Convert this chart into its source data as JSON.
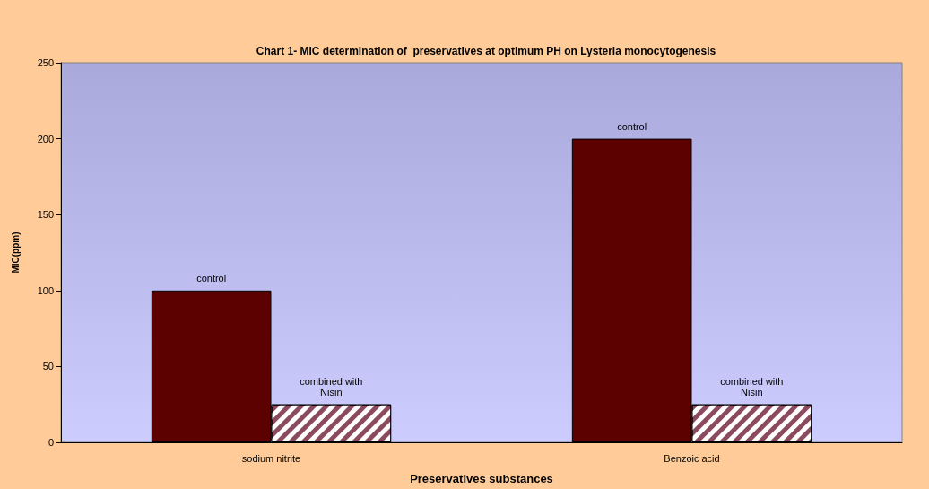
{
  "chart_data": {
    "type": "bar",
    "title": "Chart 1- MIC determination of  preservatives at optimum PH on Lysteria monocytogenesis",
    "xlabel": "Preservatives substances",
    "ylabel": "MIC(ppm)",
    "categories": [
      "sodium nitrite",
      "Benzoic acid"
    ],
    "series": [
      {
        "name": "control",
        "color": "#5c0000",
        "values": [
          100,
          200
        ]
      },
      {
        "name": "combined with\nNisin",
        "color": "#8b4a5e",
        "values": [
          25,
          25
        ]
      }
    ],
    "ylim": [
      0,
      250
    ],
    "yticks": [
      0,
      50,
      100,
      150,
      200,
      250
    ],
    "grid": false,
    "legend": false
  }
}
